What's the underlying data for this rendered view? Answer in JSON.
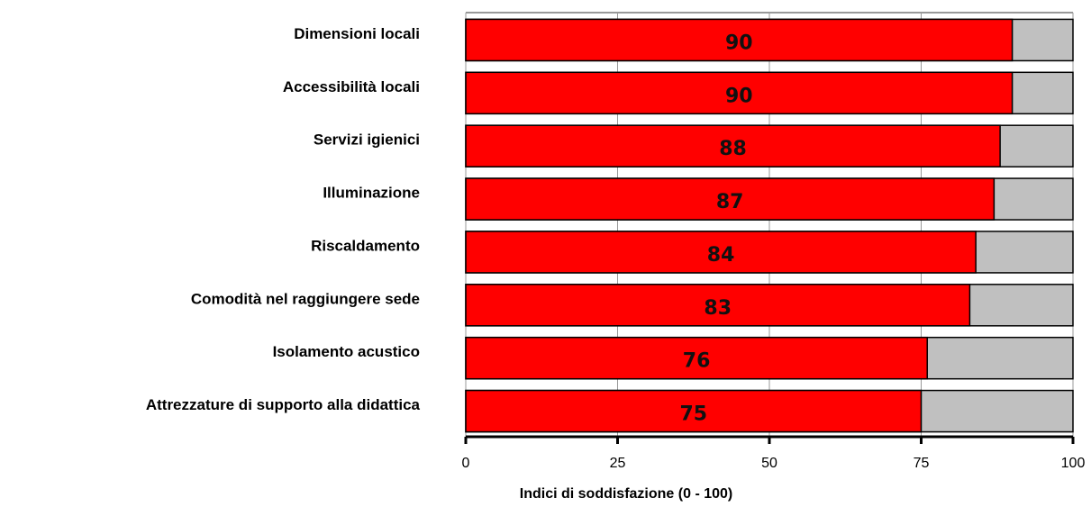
{
  "chart_data": {
    "type": "bar",
    "orientation": "horizontal",
    "x_label": "Indici di soddisfazione (0 - 100)",
    "categories": [
      "Dimensioni locali",
      "Accessibilità locali",
      "Servizi igienici",
      "Illuminazione",
      "Riscaldamento",
      "Comodità nel raggiungere sede",
      "Isolamento acustico",
      "Attrezzature di supporto alla didattica"
    ],
    "values": [
      90,
      90,
      88,
      87,
      84,
      83,
      76,
      75
    ],
    "color": "#ff0000",
    "track_color": "#c0c0c0",
    "xlim": [
      0,
      100
    ],
    "xticks": [
      0,
      25,
      50,
      75,
      100
    ],
    "grid": true
  }
}
